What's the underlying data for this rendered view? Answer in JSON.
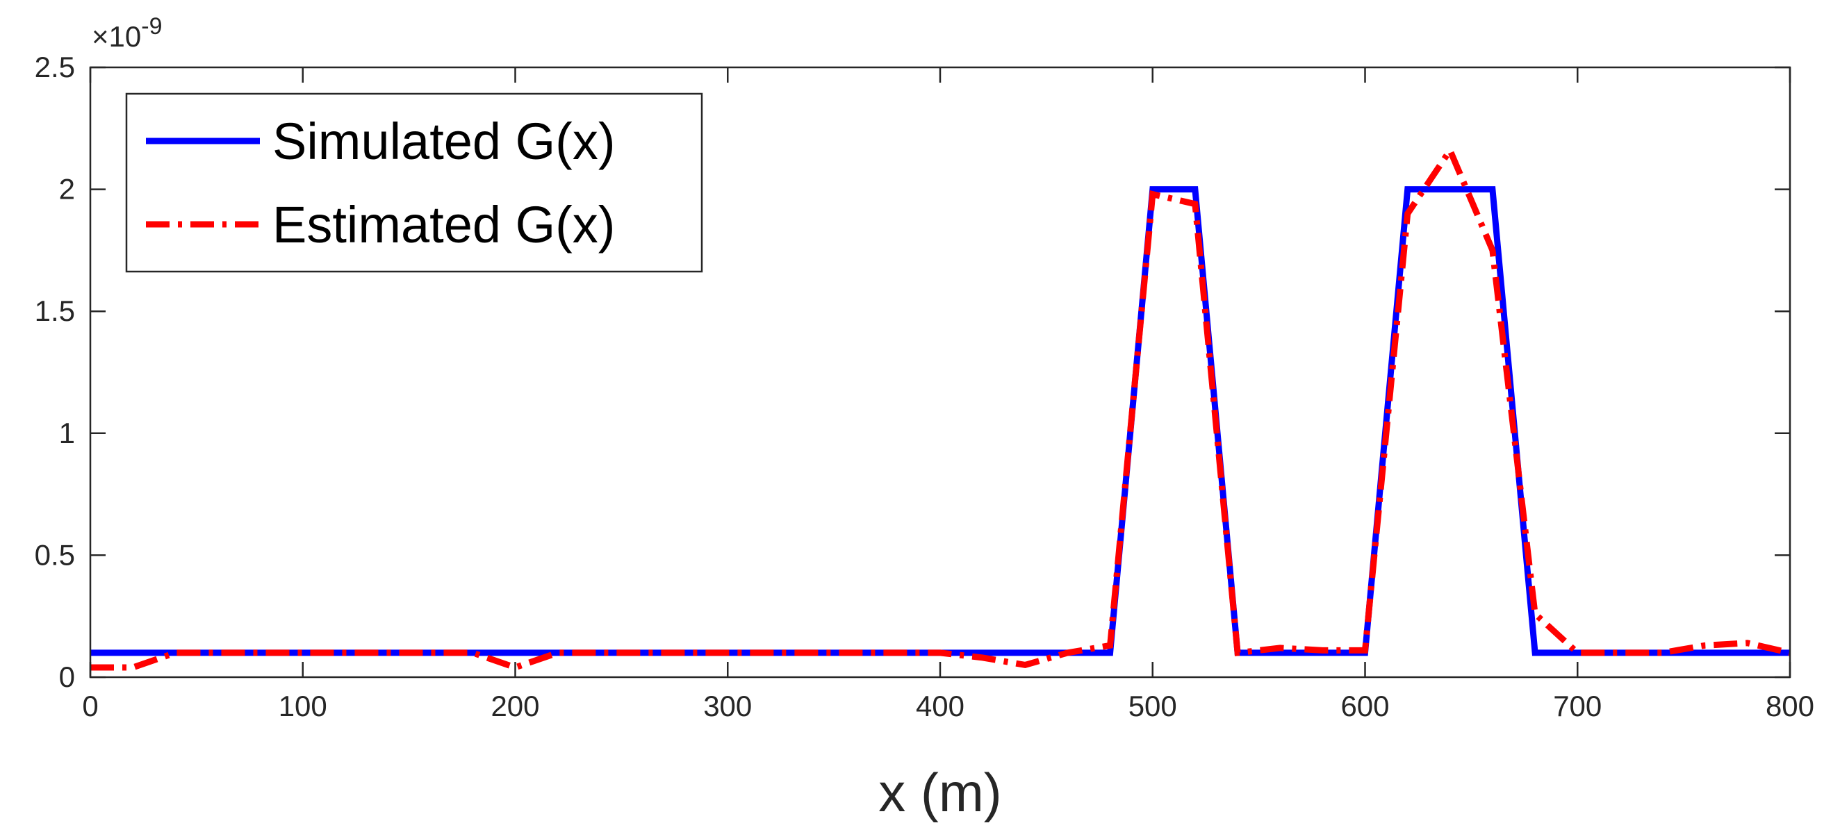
{
  "chart_data": {
    "type": "line",
    "title": "",
    "xlabel": "x (m)",
    "ylabel": "",
    "y_multiplier_label": {
      "base": "×10",
      "exponent": "-9"
    },
    "xlim": [
      0,
      800
    ],
    "ylim": [
      0,
      2.5
    ],
    "x_ticks": [
      0,
      100,
      200,
      300,
      400,
      500,
      600,
      700,
      800
    ],
    "x_tick_labels": [
      "0",
      "100",
      "200",
      "300",
      "400",
      "500",
      "600",
      "700",
      "800"
    ],
    "y_ticks": [
      0,
      0.5,
      1,
      1.5,
      2,
      2.5
    ],
    "y_tick_labels": [
      "0",
      "0.5",
      "1",
      "1.5",
      "2",
      "2.5"
    ],
    "grid": false,
    "legend_position": "top-left",
    "series": [
      {
        "name": "Simulated G(x)",
        "color": "#0000ff",
        "style": "solid",
        "x": [
          0,
          480,
          500,
          520,
          540,
          600,
          620,
          660,
          680,
          800
        ],
        "y": [
          0.1,
          0.1,
          2.0,
          2.0,
          0.1,
          0.1,
          2.0,
          2.0,
          0.1,
          0.1
        ]
      },
      {
        "name": "Estimated G(x)",
        "color": "#ff0000",
        "style": "dash-dot",
        "x": [
          0,
          20,
          40,
          60,
          100,
          150,
          180,
          200,
          220,
          260,
          300,
          350,
          400,
          420,
          440,
          460,
          480,
          500,
          520,
          540,
          560,
          580,
          600,
          620,
          640,
          660,
          680,
          700,
          720,
          740,
          760,
          780,
          800
        ],
        "y": [
          0.04,
          0.04,
          0.1,
          0.1,
          0.1,
          0.1,
          0.1,
          0.04,
          0.1,
          0.1,
          0.1,
          0.1,
          0.1,
          0.08,
          0.05,
          0.1,
          0.13,
          1.98,
          1.94,
          0.1,
          0.12,
          0.11,
          0.11,
          1.9,
          2.16,
          1.75,
          0.26,
          0.1,
          0.1,
          0.1,
          0.13,
          0.14,
          0.1
        ]
      }
    ]
  }
}
